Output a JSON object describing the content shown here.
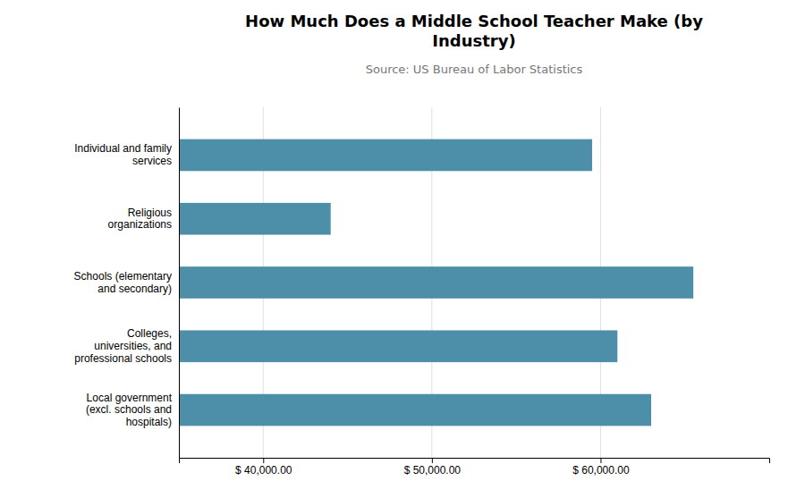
{
  "chart_data": {
    "type": "bar",
    "orientation": "horizontal",
    "title": "How Much Does a Middle School Teacher Make (by\nIndustry)",
    "subtitle": "Source: US Bureau of Labor Statistics",
    "categories": [
      "Local government\n(excl. schools and\nhospitals)",
      "Colleges,\nuniversities, and\nprofessional schools",
      "Schools (elementary\nand secondary)",
      "Religious\norganizations",
      "Individual and family\nservices"
    ],
    "values": [
      63000,
      61000,
      65500,
      44000,
      59500
    ],
    "color": "#4d8fa8",
    "xlim": [
      35000,
      70000
    ],
    "xticks": [
      {
        "value": 40000,
        "label": "$ 40,000.00"
      },
      {
        "value": 50000,
        "label": "$ 50,000.00"
      },
      {
        "value": 60000,
        "label": "$ 60,000.00"
      }
    ],
    "grid": true
  }
}
